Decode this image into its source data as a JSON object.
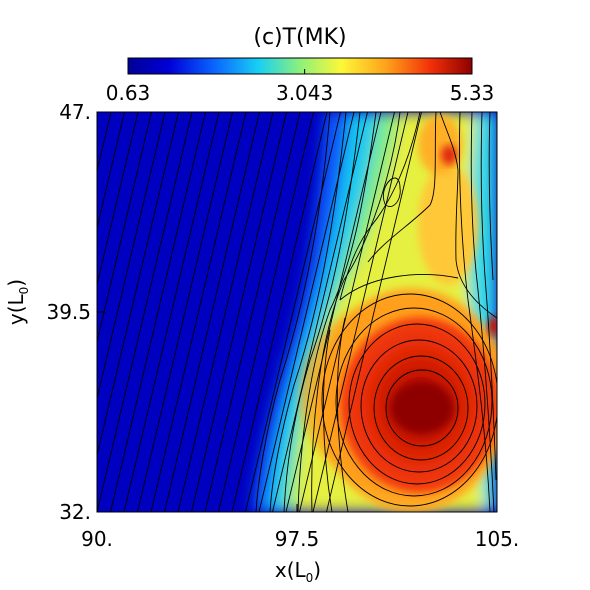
{
  "chart_data": {
    "type": "heatmap",
    "title": "(c)T(MK)",
    "xlabel": "x(L",
    "xlabel_sub": "0",
    "xlabel_close": ")",
    "ylabel": "y(L",
    "ylabel_sub": "0",
    "ylabel_close": ")",
    "xlim": [
      90,
      105
    ],
    "ylim": [
      32,
      47
    ],
    "x_ticks": [
      {
        "value": 90,
        "label": "90."
      },
      {
        "value": 97.5,
        "label": "97.5"
      },
      {
        "value": 105,
        "label": "105."
      }
    ],
    "y_ticks": [
      {
        "value": 32,
        "label": "32."
      },
      {
        "value": 39.5,
        "label": "39.5"
      },
      {
        "value": 47,
        "label": "47."
      }
    ],
    "colorbar": {
      "min": 0.63,
      "max": 5.33,
      "colormap": "rainbow",
      "ticks": [
        {
          "value": 0.63,
          "label": "0.63"
        },
        {
          "value": 3.043,
          "label": "3.043"
        },
        {
          "value": 5.33,
          "label": "5.33"
        }
      ]
    },
    "features": {
      "background_temperature": 0.63,
      "hot_core": {
        "x": 102.8,
        "y": 35.5,
        "T": 5.33
      },
      "hot_spot_upper": {
        "x": 103.9,
        "y": 44.8,
        "T": 4.9
      },
      "hot_spot_edge": {
        "x": 104.9,
        "y": 39.1,
        "T": 5.0
      },
      "contour_lines": "black",
      "grid": false
    }
  }
}
